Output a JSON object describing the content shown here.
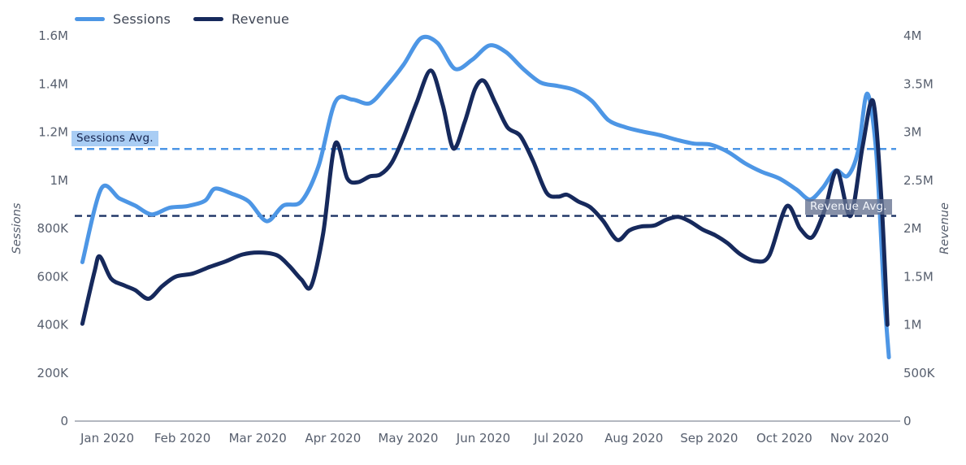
{
  "legend": {
    "items": [
      {
        "label": "Sessions",
        "color": "#4d96e5"
      },
      {
        "label": "Revenue",
        "color": "#16295c"
      }
    ]
  },
  "chart_data": {
    "type": "line",
    "title": "",
    "grid": false,
    "legend_position": "top-left",
    "x_axis": {
      "tick_labels": [
        "Jan 2020",
        "Feb 2020",
        "Mar 2020",
        "Apr 2020",
        "May 2020",
        "Jun 2020",
        "Jul 2020",
        "Aug 2020",
        "Sep 2020",
        "Oct 2020",
        "Nov 2020"
      ],
      "color": "#575f6e"
    },
    "y_axis_left": {
      "title": "Sessions",
      "min": 0,
      "max": 1600000,
      "tick_labels": [
        "0",
        "200K",
        "400K",
        "600K",
        "800K",
        "1M",
        "1.2M",
        "1.4M",
        "1.6M"
      ],
      "tick_values": [
        0,
        200000,
        400000,
        600000,
        800000,
        1000000,
        1200000,
        1400000,
        1600000
      ]
    },
    "y_axis_right": {
      "title": "Revenue",
      "min": 0,
      "max": 4000000,
      "tick_labels": [
        "0",
        "500K",
        "1M",
        "1.5M",
        "2M",
        "2.5M",
        "3M",
        "3.5M",
        "4M"
      ],
      "tick_values": [
        0,
        500000,
        1000000,
        1500000,
        2000000,
        2500000,
        3000000,
        3500000,
        4000000
      ]
    },
    "series": [
      {
        "name": "Sessions",
        "axis": "left",
        "color": "#4d96e5",
        "points": [
          [
            -0.33,
            660000
          ],
          [
            -0.08,
            965000
          ],
          [
            0.16,
            925000
          ],
          [
            0.37,
            895000
          ],
          [
            0.59,
            858000
          ],
          [
            0.83,
            886000
          ],
          [
            1.07,
            893000
          ],
          [
            1.3,
            915000
          ],
          [
            1.43,
            965000
          ],
          [
            1.65,
            945000
          ],
          [
            1.88,
            912000
          ],
          [
            2.12,
            830000
          ],
          [
            2.34,
            895000
          ],
          [
            2.58,
            912000
          ],
          [
            2.81,
            1060000
          ],
          [
            3.03,
            1325000
          ],
          [
            3.26,
            1335000
          ],
          [
            3.49,
            1320000
          ],
          [
            3.71,
            1390000
          ],
          [
            3.94,
            1480000
          ],
          [
            4.17,
            1590000
          ],
          [
            4.39,
            1570000
          ],
          [
            4.62,
            1463000
          ],
          [
            4.85,
            1500000
          ],
          [
            5.08,
            1560000
          ],
          [
            5.3,
            1532000
          ],
          [
            5.53,
            1462000
          ],
          [
            5.76,
            1406000
          ],
          [
            5.98,
            1392000
          ],
          [
            6.21,
            1375000
          ],
          [
            6.44,
            1330000
          ],
          [
            6.66,
            1250000
          ],
          [
            6.89,
            1220000
          ],
          [
            7.12,
            1202000
          ],
          [
            7.34,
            1188000
          ],
          [
            7.57,
            1168000
          ],
          [
            7.8,
            1152000
          ],
          [
            8.02,
            1148000
          ],
          [
            8.25,
            1118000
          ],
          [
            8.48,
            1070000
          ],
          [
            8.7,
            1035000
          ],
          [
            8.93,
            1008000
          ],
          [
            9.16,
            962000
          ],
          [
            9.34,
            920000
          ],
          [
            9.51,
            968000
          ],
          [
            9.68,
            1040000
          ],
          [
            9.84,
            1018000
          ],
          [
            9.98,
            1120000
          ],
          [
            10.1,
            1360000
          ],
          [
            10.22,
            1120000
          ],
          [
            10.32,
            560000
          ],
          [
            10.39,
            265000
          ]
        ]
      },
      {
        "name": "Revenue",
        "axis": "right",
        "color": "#16295c",
        "points": [
          [
            -0.33,
            1010000
          ],
          [
            -0.17,
            1550000
          ],
          [
            -0.1,
            1710000
          ],
          [
            0.05,
            1480000
          ],
          [
            0.22,
            1410000
          ],
          [
            0.37,
            1360000
          ],
          [
            0.55,
            1270000
          ],
          [
            0.73,
            1400000
          ],
          [
            0.91,
            1500000
          ],
          [
            1.13,
            1530000
          ],
          [
            1.36,
            1600000
          ],
          [
            1.58,
            1660000
          ],
          [
            1.8,
            1730000
          ],
          [
            2.03,
            1750000
          ],
          [
            2.26,
            1720000
          ],
          [
            2.42,
            1610000
          ],
          [
            2.58,
            1470000
          ],
          [
            2.71,
            1400000
          ],
          [
            2.87,
            1950000
          ],
          [
            3.03,
            2880000
          ],
          [
            3.19,
            2520000
          ],
          [
            3.33,
            2480000
          ],
          [
            3.49,
            2540000
          ],
          [
            3.63,
            2560000
          ],
          [
            3.78,
            2680000
          ],
          [
            3.94,
            2950000
          ],
          [
            4.11,
            3300000
          ],
          [
            4.3,
            3640000
          ],
          [
            4.46,
            3280000
          ],
          [
            4.6,
            2830000
          ],
          [
            4.75,
            3100000
          ],
          [
            4.89,
            3450000
          ],
          [
            5.01,
            3530000
          ],
          [
            5.16,
            3300000
          ],
          [
            5.32,
            3050000
          ],
          [
            5.49,
            2960000
          ],
          [
            5.66,
            2700000
          ],
          [
            5.84,
            2370000
          ],
          [
            5.99,
            2330000
          ],
          [
            6.11,
            2350000
          ],
          [
            6.26,
            2280000
          ],
          [
            6.42,
            2220000
          ],
          [
            6.59,
            2080000
          ],
          [
            6.78,
            1880000
          ],
          [
            6.94,
            1980000
          ],
          [
            7.1,
            2020000
          ],
          [
            7.27,
            2030000
          ],
          [
            7.43,
            2090000
          ],
          [
            7.59,
            2120000
          ],
          [
            7.75,
            2070000
          ],
          [
            7.91,
            1990000
          ],
          [
            8.08,
            1930000
          ],
          [
            8.24,
            1850000
          ],
          [
            8.42,
            1730000
          ],
          [
            8.62,
            1660000
          ],
          [
            8.8,
            1720000
          ],
          [
            9.03,
            2230000
          ],
          [
            9.21,
            2000000
          ],
          [
            9.37,
            1910000
          ],
          [
            9.54,
            2200000
          ],
          [
            9.7,
            2600000
          ],
          [
            9.88,
            2130000
          ],
          [
            10.04,
            2850000
          ],
          [
            10.18,
            3320000
          ],
          [
            10.29,
            2300000
          ],
          [
            10.37,
            1000000
          ]
        ]
      }
    ],
    "annotations": [
      {
        "label": "Sessions Avg.",
        "axis": "left",
        "value": 1130000,
        "line_color": "#4d96e5",
        "box_bg": "#a9cdf4",
        "text_color": "#15234e"
      },
      {
        "label": "Revenue Avg.",
        "axis": "right",
        "value": 2130000,
        "line_color": "#1b3263",
        "box_bg": "rgba(100,113,144,0.78)",
        "text_color": "#f3f6fb"
      }
    ]
  }
}
